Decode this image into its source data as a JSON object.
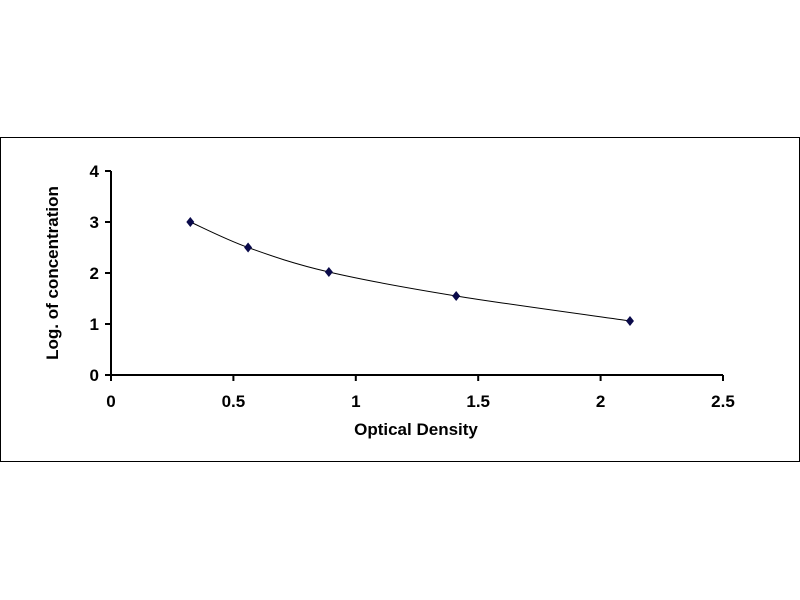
{
  "chart_data": {
    "type": "scatter",
    "title": "",
    "xlabel": "Optical Density",
    "ylabel": "Log. of concentration",
    "xlim": [
      0,
      2.5
    ],
    "ylim": [
      0,
      4
    ],
    "xticks": [
      "0",
      "0.5",
      "1",
      "1.5",
      "2",
      "2.5"
    ],
    "yticks": [
      "0",
      "1",
      "2",
      "3",
      "4"
    ],
    "grid": false,
    "legend": "none",
    "marker": "diamond",
    "trendline": "smooth curve",
    "colors": {
      "marker": "#0a0a4a",
      "line": "#000000"
    },
    "x": [
      0.324,
      0.56,
      0.89,
      1.41,
      2.12
    ],
    "y": [
      3.0,
      2.5,
      2.02,
      1.55,
      1.06
    ]
  }
}
